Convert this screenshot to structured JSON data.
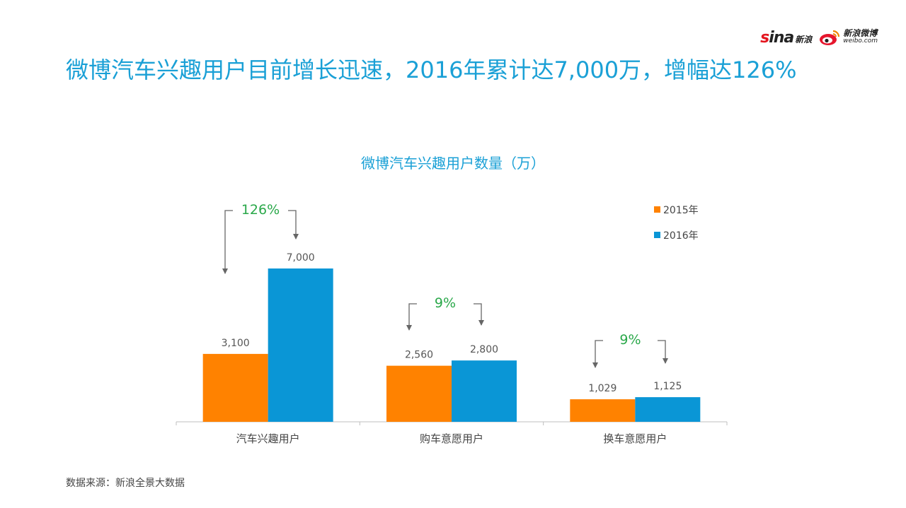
{
  "logos": {
    "sina_text": "sina",
    "sina_cn": "新浪",
    "weibo_cn": "新浪微博",
    "weibo_en": "weibo.com"
  },
  "headline": "微博汽车兴趣用户目前增长迅速，2016年累计达7,000万，增幅达126%",
  "source": "数据来源：新浪全景大数据",
  "colors": {
    "title": "#1aa0d6",
    "series_2015": "#ff8200",
    "series_2016": "#0a96d6",
    "growth": "#2aa84a",
    "axis": "#bfbfbf"
  },
  "chart_data": {
    "type": "bar",
    "title": "微博汽车兴趣用户数量（万）",
    "categories": [
      "汽车兴趣用户",
      "购车意愿用户",
      "换车意愿用户"
    ],
    "series": [
      {
        "name": "2015年",
        "values": [
          3100,
          2560,
          1029
        ]
      },
      {
        "name": "2016年",
        "values": [
          7000,
          2800,
          1125
        ]
      }
    ],
    "data_labels": [
      [
        "3,100",
        "2,560",
        "1,029"
      ],
      [
        "7,000",
        "2,800",
        "1,125"
      ]
    ],
    "growth_labels": [
      "126%",
      "9%",
      "9%"
    ],
    "ylim": [
      0,
      8000
    ],
    "grid": false,
    "legend": "top-right"
  }
}
